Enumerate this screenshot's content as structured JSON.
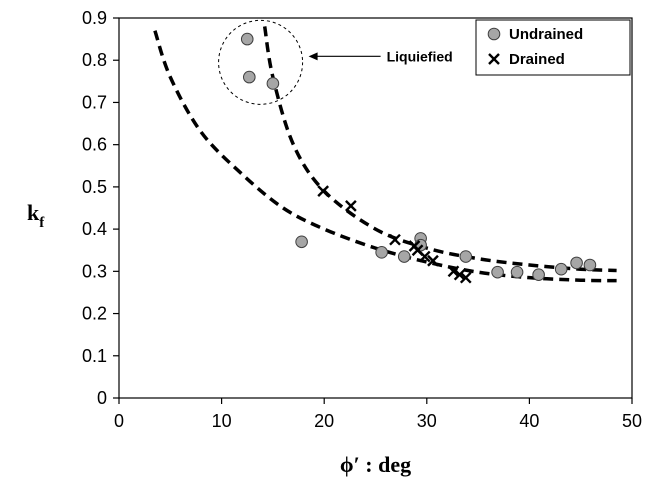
{
  "chart_data": {
    "type": "scatter",
    "xlabel": "ϕ′ : deg",
    "ylabel": "k",
    "ylabel_sub": "f",
    "xlim": [
      0,
      50
    ],
    "ylim": [
      0,
      0.9
    ],
    "xticks": [
      0,
      10,
      20,
      30,
      40,
      50
    ],
    "yticks": [
      0,
      0.1,
      0.2,
      0.3,
      0.4,
      0.5,
      0.6,
      0.7,
      0.8,
      0.9
    ],
    "grid": false,
    "legend_position": "top-right",
    "series": [
      {
        "name": "Undrained",
        "marker": "circle",
        "color": "#a6a6a6",
        "points": [
          [
            12.5,
            0.85
          ],
          [
            12.7,
            0.76
          ],
          [
            15.0,
            0.745
          ],
          [
            17.8,
            0.37
          ],
          [
            25.6,
            0.345
          ],
          [
            27.8,
            0.335
          ],
          [
            29.4,
            0.378
          ],
          [
            29.4,
            0.362
          ],
          [
            33.8,
            0.335
          ],
          [
            36.9,
            0.298
          ],
          [
            38.8,
            0.298
          ],
          [
            40.9,
            0.292
          ],
          [
            43.1,
            0.305
          ],
          [
            44.6,
            0.32
          ],
          [
            45.9,
            0.315
          ]
        ]
      },
      {
        "name": "Drained",
        "marker": "x",
        "color": "#000000",
        "points": [
          [
            19.9,
            0.49
          ],
          [
            22.6,
            0.455
          ],
          [
            26.9,
            0.375
          ],
          [
            28.8,
            0.36
          ],
          [
            29.1,
            0.35
          ],
          [
            29.8,
            0.335
          ],
          [
            30.6,
            0.325
          ],
          [
            32.6,
            0.3
          ],
          [
            33.2,
            0.292
          ],
          [
            33.8,
            0.285
          ]
        ]
      }
    ],
    "fit_curves": [
      {
        "style": "dashed",
        "points": [
          [
            14.2,
            0.88
          ],
          [
            15,
            0.76
          ],
          [
            17,
            0.6
          ],
          [
            20,
            0.49
          ],
          [
            25,
            0.4
          ],
          [
            30,
            0.355
          ],
          [
            35,
            0.33
          ],
          [
            40,
            0.315
          ],
          [
            45,
            0.305
          ],
          [
            48.5,
            0.302
          ]
        ]
      },
      {
        "style": "dashed",
        "points": [
          [
            3.5,
            0.87
          ],
          [
            5,
            0.76
          ],
          [
            8,
            0.63
          ],
          [
            12,
            0.53
          ],
          [
            16,
            0.45
          ],
          [
            20,
            0.4
          ],
          [
            25,
            0.355
          ],
          [
            30,
            0.322
          ],
          [
            35,
            0.298
          ],
          [
            40,
            0.285
          ],
          [
            45,
            0.279
          ],
          [
            48.5,
            0.278
          ]
        ]
      }
    ],
    "annotations": [
      {
        "text": "Liquiefied",
        "target": [
          13.8,
          0.795
        ],
        "shape": "dashed-circle"
      }
    ]
  }
}
